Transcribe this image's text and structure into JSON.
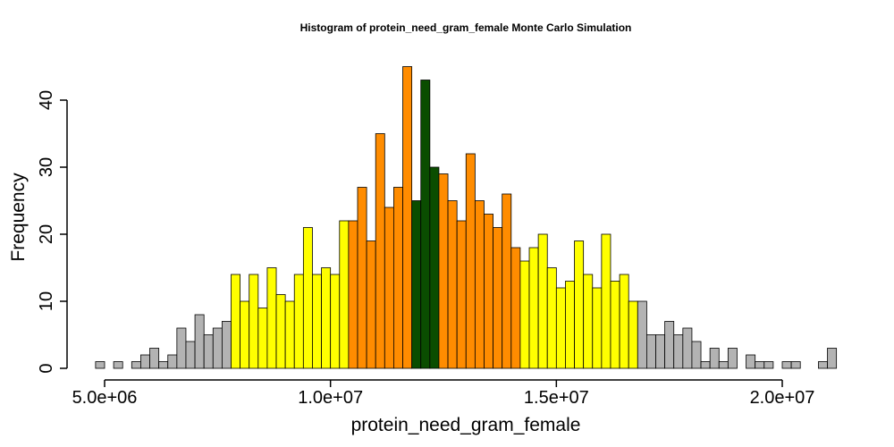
{
  "chart_data": {
    "type": "bar",
    "title": "Histogram of  protein_need_gram_female  Monte Carlo Simulation",
    "xlabel": "protein_need_gram_female",
    "ylabel": "Frequency",
    "xlim": [
      5000000,
      21200000
    ],
    "ylim": [
      0,
      45
    ],
    "bin_start": 4800000,
    "bin_width": 200000,
    "x_ticks": [
      {
        "value": 5000000,
        "label": "5.0e+06"
      },
      {
        "value": 10000000,
        "label": "1.0e+07"
      },
      {
        "value": 15000000,
        "label": "1.5e+07"
      },
      {
        "value": 20000000,
        "label": "2.0e+07"
      }
    ],
    "y_ticks": [
      {
        "value": 0,
        "label": "0"
      },
      {
        "value": 10,
        "label": "10"
      },
      {
        "value": 20,
        "label": "20"
      },
      {
        "value": 30,
        "label": "30"
      },
      {
        "value": 40,
        "label": "40"
      }
    ],
    "bins": [
      {
        "x": 4800000,
        "count": 1,
        "color": "gray"
      },
      {
        "x": 5000000,
        "count": 0,
        "color": "gray"
      },
      {
        "x": 5200000,
        "count": 1,
        "color": "gray"
      },
      {
        "x": 5400000,
        "count": 0,
        "color": "gray"
      },
      {
        "x": 5600000,
        "count": 1,
        "color": "gray"
      },
      {
        "x": 5800000,
        "count": 2,
        "color": "gray"
      },
      {
        "x": 6000000,
        "count": 3,
        "color": "gray"
      },
      {
        "x": 6200000,
        "count": 1,
        "color": "gray"
      },
      {
        "x": 6400000,
        "count": 2,
        "color": "gray"
      },
      {
        "x": 6600000,
        "count": 6,
        "color": "gray"
      },
      {
        "x": 6800000,
        "count": 4,
        "color": "gray"
      },
      {
        "x": 7000000,
        "count": 8,
        "color": "gray"
      },
      {
        "x": 7200000,
        "count": 5,
        "color": "gray"
      },
      {
        "x": 7400000,
        "count": 6,
        "color": "gray"
      },
      {
        "x": 7600000,
        "count": 7,
        "color": "gray"
      },
      {
        "x": 7800000,
        "count": 14,
        "color": "yellow"
      },
      {
        "x": 8000000,
        "count": 10,
        "color": "yellow"
      },
      {
        "x": 8200000,
        "count": 14,
        "color": "yellow"
      },
      {
        "x": 8400000,
        "count": 9,
        "color": "yellow"
      },
      {
        "x": 8600000,
        "count": 15,
        "color": "yellow"
      },
      {
        "x": 8800000,
        "count": 11,
        "color": "yellow"
      },
      {
        "x": 9000000,
        "count": 10,
        "color": "yellow"
      },
      {
        "x": 9200000,
        "count": 14,
        "color": "yellow"
      },
      {
        "x": 9400000,
        "count": 21,
        "color": "yellow"
      },
      {
        "x": 9600000,
        "count": 14,
        "color": "yellow"
      },
      {
        "x": 9800000,
        "count": 15,
        "color": "yellow"
      },
      {
        "x": 10000000,
        "count": 14,
        "color": "yellow"
      },
      {
        "x": 10200000,
        "count": 22,
        "color": "yellow"
      },
      {
        "x": 10400000,
        "count": 22,
        "color": "orange"
      },
      {
        "x": 10600000,
        "count": 27,
        "color": "orange"
      },
      {
        "x": 10800000,
        "count": 19,
        "color": "orange"
      },
      {
        "x": 11000000,
        "count": 35,
        "color": "orange"
      },
      {
        "x": 11200000,
        "count": 24,
        "color": "orange"
      },
      {
        "x": 11400000,
        "count": 27,
        "color": "orange"
      },
      {
        "x": 11600000,
        "count": 45,
        "color": "orange"
      },
      {
        "x": 11800000,
        "count": 25,
        "color": "green"
      },
      {
        "x": 12000000,
        "count": 43,
        "color": "green"
      },
      {
        "x": 12200000,
        "count": 30,
        "color": "green"
      },
      {
        "x": 12400000,
        "count": 29,
        "color": "orange"
      },
      {
        "x": 12600000,
        "count": 25,
        "color": "orange"
      },
      {
        "x": 12800000,
        "count": 22,
        "color": "orange"
      },
      {
        "x": 13000000,
        "count": 32,
        "color": "orange"
      },
      {
        "x": 13200000,
        "count": 25,
        "color": "orange"
      },
      {
        "x": 13400000,
        "count": 23,
        "color": "orange"
      },
      {
        "x": 13600000,
        "count": 21,
        "color": "orange"
      },
      {
        "x": 13800000,
        "count": 26,
        "color": "orange"
      },
      {
        "x": 14000000,
        "count": 18,
        "color": "orange"
      },
      {
        "x": 14200000,
        "count": 16,
        "color": "yellow"
      },
      {
        "x": 14400000,
        "count": 18,
        "color": "yellow"
      },
      {
        "x": 14600000,
        "count": 20,
        "color": "yellow"
      },
      {
        "x": 14800000,
        "count": 15,
        "color": "yellow"
      },
      {
        "x": 15000000,
        "count": 12,
        "color": "yellow"
      },
      {
        "x": 15200000,
        "count": 13,
        "color": "yellow"
      },
      {
        "x": 15400000,
        "count": 19,
        "color": "yellow"
      },
      {
        "x": 15600000,
        "count": 14,
        "color": "yellow"
      },
      {
        "x": 15800000,
        "count": 12,
        "color": "yellow"
      },
      {
        "x": 16000000,
        "count": 20,
        "color": "yellow"
      },
      {
        "x": 16200000,
        "count": 13,
        "color": "yellow"
      },
      {
        "x": 16400000,
        "count": 14,
        "color": "yellow"
      },
      {
        "x": 16600000,
        "count": 10,
        "color": "yellow"
      },
      {
        "x": 16800000,
        "count": 10,
        "color": "gray"
      },
      {
        "x": 17000000,
        "count": 5,
        "color": "gray"
      },
      {
        "x": 17200000,
        "count": 5,
        "color": "gray"
      },
      {
        "x": 17400000,
        "count": 7,
        "color": "gray"
      },
      {
        "x": 17600000,
        "count": 5,
        "color": "gray"
      },
      {
        "x": 17800000,
        "count": 6,
        "color": "gray"
      },
      {
        "x": 18000000,
        "count": 4,
        "color": "gray"
      },
      {
        "x": 18200000,
        "count": 1,
        "color": "gray"
      },
      {
        "x": 18400000,
        "count": 3,
        "color": "gray"
      },
      {
        "x": 18600000,
        "count": 1,
        "color": "gray"
      },
      {
        "x": 18800000,
        "count": 3,
        "color": "gray"
      },
      {
        "x": 19000000,
        "count": 0,
        "color": "gray"
      },
      {
        "x": 19200000,
        "count": 2,
        "color": "gray"
      },
      {
        "x": 19400000,
        "count": 1,
        "color": "gray"
      },
      {
        "x": 19600000,
        "count": 1,
        "color": "gray"
      },
      {
        "x": 19800000,
        "count": 0,
        "color": "gray"
      },
      {
        "x": 20000000,
        "count": 1,
        "color": "gray"
      },
      {
        "x": 20200000,
        "count": 1,
        "color": "gray"
      },
      {
        "x": 20400000,
        "count": 0,
        "color": "gray"
      },
      {
        "x": 20600000,
        "count": 0,
        "color": "gray"
      },
      {
        "x": 20800000,
        "count": 1,
        "color": "gray"
      },
      {
        "x": 21000000,
        "count": 3,
        "color": "gray"
      }
    ],
    "colors": {
      "gray": "#b3b3b3",
      "yellow": "#ffff00",
      "orange": "#ff8c00",
      "green": "#0a4d00"
    },
    "grid": false,
    "legend": "none"
  }
}
